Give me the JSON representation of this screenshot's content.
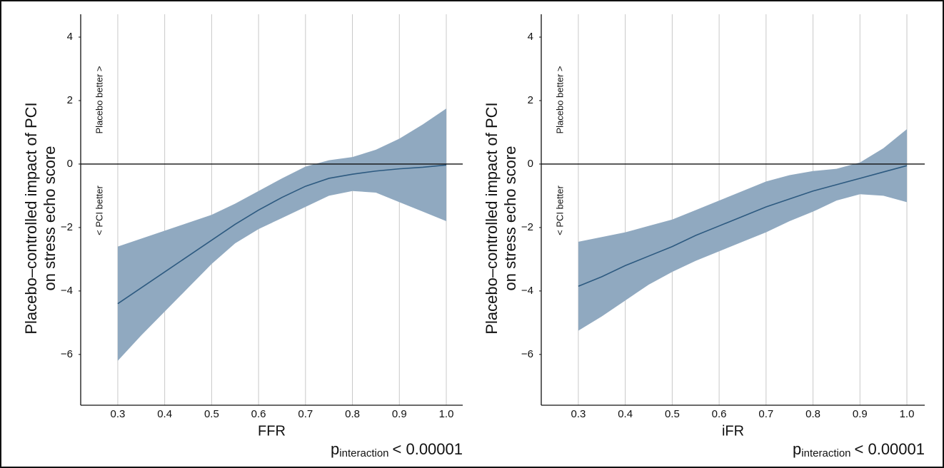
{
  "chart_data": [
    {
      "type": "line",
      "y_label": [
        "Placebo–controlled impact of PCI",
        "on stress echo score"
      ],
      "x_label": "FFR",
      "annotations": [
        "Placebo better >",
        "< PCI better"
      ],
      "p_text": {
        "main": "p",
        "sub": "interaction",
        "rest": "< 0.00001"
      },
      "x": [
        0.3,
        0.35,
        0.4,
        0.45,
        0.5,
        0.55,
        0.6,
        0.65,
        0.7,
        0.75,
        0.8,
        0.85,
        0.9,
        0.95,
        1.0
      ],
      "line": {
        "color": "#2d5a80",
        "values": [
          -4.4,
          -3.9,
          -3.4,
          -2.9,
          -2.4,
          -1.9,
          -1.45,
          -1.05,
          -0.7,
          -0.45,
          -0.32,
          -0.22,
          -0.15,
          -0.1,
          -0.03
        ]
      },
      "band": {
        "color": "#90a9c0",
        "upper": [
          -2.6,
          -2.35,
          -2.1,
          -1.85,
          -1.6,
          -1.25,
          -0.85,
          -0.45,
          -0.08,
          0.12,
          0.22,
          0.45,
          0.8,
          1.25,
          1.75
        ],
        "lower": [
          -6.2,
          -5.4,
          -4.65,
          -3.9,
          -3.15,
          -2.5,
          -2.05,
          -1.7,
          -1.35,
          -1.0,
          -0.85,
          -0.9,
          -1.2,
          -1.5,
          -1.8
        ]
      },
      "hline": 0,
      "xlim": [
        0.221,
        1.035
      ],
      "ylim": [
        -7.6,
        4.72
      ],
      "xticks": [
        0.3,
        0.4,
        0.5,
        0.6,
        0.7,
        0.8,
        0.9,
        {
          "value": 1.0,
          "label": "1.0"
        }
      ],
      "yticks": [
        {
          "value": -6,
          "label": "−6"
        },
        {
          "value": -4,
          "label": "−4"
        },
        {
          "value": -2,
          "label": "−2"
        },
        0,
        2,
        4
      ],
      "grid": true
    },
    {
      "type": "line",
      "y_label": [
        "Placebo–controlled impact of PCI",
        "on stress echo score"
      ],
      "x_label": "iFR",
      "annotations": [
        "Placebo better >",
        "< PCI better"
      ],
      "p_text": {
        "main": "p",
        "sub": "interaction",
        "rest": "< 0.00001"
      },
      "x": [
        0.3,
        0.35,
        0.4,
        0.45,
        0.5,
        0.55,
        0.6,
        0.65,
        0.7,
        0.75,
        0.8,
        0.85,
        0.9,
        0.95,
        1.0
      ],
      "line": {
        "color": "#2d5a80",
        "values": [
          -3.85,
          -3.55,
          -3.2,
          -2.9,
          -2.6,
          -2.25,
          -1.95,
          -1.65,
          -1.35,
          -1.1,
          -0.85,
          -0.65,
          -0.45,
          -0.25,
          -0.05
        ]
      },
      "band": {
        "color": "#90a9c0",
        "upper": [
          -2.45,
          -2.3,
          -2.15,
          -1.95,
          -1.75,
          -1.45,
          -1.15,
          -0.85,
          -0.55,
          -0.35,
          -0.22,
          -0.15,
          0.05,
          0.5,
          1.1
        ],
        "lower": [
          -5.25,
          -4.8,
          -4.3,
          -3.8,
          -3.4,
          -3.05,
          -2.75,
          -2.45,
          -2.15,
          -1.8,
          -1.5,
          -1.15,
          -0.95,
          -1.0,
          -1.2
        ]
      },
      "hline": 0,
      "xlim": [
        0.221,
        1.038
      ],
      "ylim": [
        -7.6,
        4.72
      ],
      "xticks": [
        0.3,
        0.4,
        0.5,
        0.6,
        0.7,
        0.8,
        0.9,
        {
          "value": 1.0,
          "label": "1.0"
        }
      ],
      "yticks": [
        {
          "value": -6,
          "label": "−6"
        },
        {
          "value": -4,
          "label": "−4"
        },
        {
          "value": -2,
          "label": "−2"
        },
        0,
        2,
        4
      ],
      "grid": true
    }
  ]
}
